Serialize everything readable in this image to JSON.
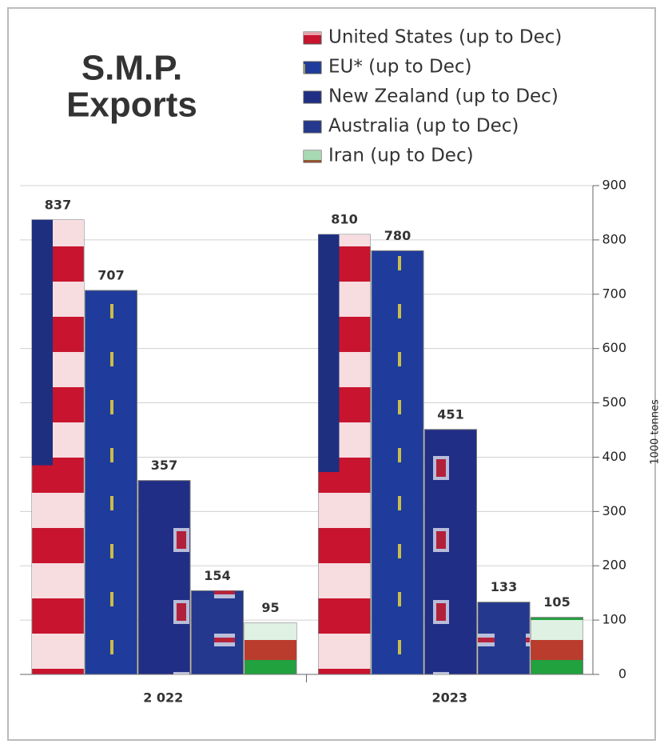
{
  "chart_data": {
    "type": "bar",
    "title": [
      "S.M.P.",
      "Exports"
    ],
    "y_axis_label": "1000 tonnes",
    "categories": [
      "2 022",
      "2023"
    ],
    "series": [
      {
        "name": "United States (up to Dec)",
        "color": "#c8142e",
        "values": [
          837,
          810
        ]
      },
      {
        "name": "EU* (up to Dec)",
        "color": "#1f3c9c",
        "values": [
          707,
          780
        ]
      },
      {
        "name": "New Zealand (up to Dec)",
        "color": "#202e86",
        "values": [
          357,
          451
        ]
      },
      {
        "name": "Australia (up to Dec)",
        "color": "#24388e",
        "values": [
          154,
          133
        ]
      },
      {
        "name": "Iran (up to Dec)",
        "color": "#22a13f",
        "values": [
          95,
          105
        ]
      }
    ],
    "ylim": [
      0,
      900
    ],
    "yticks": [
      0,
      100,
      200,
      300,
      400,
      500,
      600,
      700,
      800,
      900
    ],
    "grid": true,
    "legend": "top"
  }
}
